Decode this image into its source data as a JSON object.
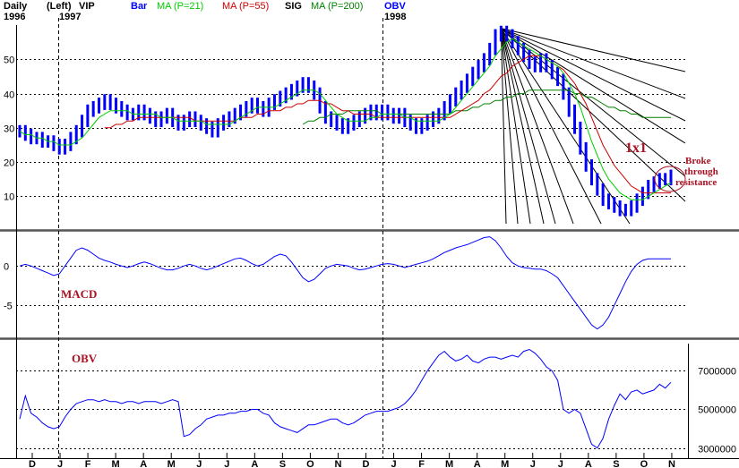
{
  "header": {
    "period": "Daily",
    "year_left": "1996",
    "left_marker": "(Left)",
    "symbol": "VIP",
    "year_left2": "1997",
    "bar": "Bar",
    "ma21": "MA (P=21)",
    "ma55": "MA (P=55)",
    "sig": "SIG",
    "ma200": "MA (P=200)",
    "obv": "OBV",
    "year_right": "1998"
  },
  "colors": {
    "bar": "#0000ff",
    "ma21": "#00cc00",
    "ma55": "#cc0000",
    "ma200": "#008000",
    "annotation": "#aa1122",
    "grid": "#000000",
    "fan": "#000000"
  },
  "annotations": {
    "oneByOne": "1x1",
    "broke1": "Broke",
    "broke2": "through",
    "broke3": "resistance",
    "macd": "MACD",
    "obv": "OBV"
  },
  "chart_data": [
    {
      "type": "line",
      "panel": "price",
      "x_ticks": [
        "D",
        "J",
        "F",
        "M",
        "A",
        "M",
        "J",
        "J",
        "A",
        "S",
        "O",
        "N",
        "D",
        "J",
        "F",
        "M",
        "A",
        "M",
        "J",
        "J",
        "A",
        "S",
        "O",
        "N"
      ],
      "y_ticks": [
        "50",
        "40",
        "30",
        "20",
        "10"
      ],
      "ylim": [
        2,
        60
      ],
      "series": [
        {
          "name": "Bar",
          "values": [
            29,
            28,
            27,
            27,
            26,
            26,
            25,
            24,
            25,
            27,
            29,
            32,
            35,
            36,
            37,
            38,
            37,
            36,
            35,
            34,
            34,
            35,
            34,
            33,
            32,
            33,
            34,
            32,
            31,
            32,
            33,
            32,
            31,
            30,
            29,
            31,
            32,
            33,
            34,
            35,
            36,
            37,
            36,
            35,
            37,
            38,
            39,
            40,
            41,
            42,
            43,
            42,
            40,
            36,
            33,
            32,
            31,
            30,
            31,
            32,
            33,
            34,
            35,
            34,
            35,
            34,
            33,
            34,
            32,
            31,
            30,
            31,
            32,
            33,
            34,
            36,
            38,
            40,
            42,
            44,
            46,
            48,
            50,
            53,
            57,
            58,
            57,
            55,
            53,
            51,
            49,
            48,
            50,
            48,
            46,
            44,
            40,
            35,
            30,
            24,
            19,
            15,
            12,
            9,
            8,
            7,
            6,
            6,
            7,
            9,
            11,
            13,
            14,
            15,
            15,
            16
          ]
        },
        {
          "name": "MA (P=21)",
          "values": [
            29,
            28,
            28,
            27,
            27,
            26,
            26,
            25,
            25,
            25,
            26,
            27,
            29,
            31,
            33,
            34,
            35,
            35,
            35,
            35,
            34,
            34,
            34,
            34,
            34,
            33,
            33,
            33,
            32,
            32,
            32,
            32,
            32,
            31,
            31,
            31,
            31,
            31,
            32,
            33,
            34,
            35,
            36,
            36,
            36,
            36,
            37,
            38,
            39,
            40,
            41,
            41,
            41,
            40,
            38,
            36,
            34,
            33,
            32,
            32,
            32,
            32,
            33,
            33,
            34,
            34,
            34,
            34,
            33,
            33,
            32,
            32,
            32,
            32,
            32,
            33,
            34,
            36,
            38,
            40,
            42,
            44,
            46,
            48,
            51,
            53,
            55,
            56,
            55,
            54,
            53,
            52,
            51,
            50,
            49,
            48,
            46,
            43,
            40,
            36,
            31,
            26,
            22,
            18,
            15,
            13,
            11,
            10,
            9,
            9,
            9,
            10,
            11,
            12,
            13,
            14
          ]
        },
        {
          "name": "MA (P=55)",
          "values": [
            null,
            null,
            null,
            null,
            null,
            null,
            null,
            null,
            null,
            null,
            null,
            null,
            null,
            null,
            null,
            30,
            30,
            31,
            31,
            32,
            32,
            33,
            33,
            33,
            33,
            33,
            33,
            33,
            33,
            33,
            33,
            32,
            32,
            32,
            32,
            32,
            32,
            32,
            32,
            33,
            33,
            33,
            34,
            34,
            35,
            35,
            35,
            36,
            36,
            37,
            37,
            38,
            38,
            38,
            37,
            37,
            36,
            35,
            35,
            34,
            34,
            34,
            34,
            33,
            33,
            33,
            33,
            33,
            33,
            33,
            33,
            33,
            33,
            33,
            33,
            33,
            33,
            34,
            35,
            36,
            37,
            38,
            40,
            41,
            43,
            45,
            46,
            48,
            49,
            50,
            51,
            51,
            51,
            50,
            49,
            48,
            47,
            45,
            43,
            40,
            37,
            33,
            29,
            25,
            22,
            19,
            17,
            15,
            13,
            12,
            11,
            11,
            11,
            11,
            11,
            11
          ]
        },
        {
          "name": "MA (P=200)",
          "values": [
            null,
            null,
            null,
            null,
            null,
            null,
            null,
            null,
            null,
            null,
            null,
            null,
            null,
            null,
            null,
            null,
            null,
            null,
            null,
            null,
            null,
            null,
            null,
            null,
            null,
            null,
            null,
            null,
            null,
            null,
            null,
            null,
            null,
            null,
            null,
            null,
            null,
            null,
            null,
            null,
            null,
            null,
            null,
            null,
            null,
            null,
            null,
            null,
            null,
            null,
            31,
            32,
            32,
            33,
            33,
            34,
            34,
            34,
            35,
            35,
            35,
            35,
            35,
            35,
            34,
            34,
            34,
            34,
            34,
            34,
            34,
            34,
            34,
            34,
            34,
            34,
            34,
            35,
            35,
            35,
            36,
            36,
            37,
            37,
            38,
            38,
            39,
            39,
            40,
            40,
            41,
            41,
            41,
            41,
            41,
            41,
            41,
            41,
            40,
            40,
            39,
            39,
            38,
            37,
            36,
            36,
            35,
            35,
            34,
            34,
            33,
            33,
            33,
            33,
            33,
            33
          ]
        }
      ]
    },
    {
      "type": "line",
      "panel": "macd",
      "y_ticks": [
        "0",
        "-5"
      ],
      "ylim": [
        -8.5,
        4
      ],
      "series": [
        {
          "name": "MACD",
          "values": [
            0,
            0.2,
            0,
            -0.3,
            -0.6,
            -0.9,
            -1.2,
            -1,
            0,
            1,
            2,
            2.3,
            2,
            1.5,
            1,
            0.7,
            0.5,
            0.2,
            0,
            -0.2,
            0,
            0.3,
            0.5,
            0.3,
            0,
            -0.3,
            -0.5,
            -0.5,
            -0.3,
            0,
            0.2,
            0,
            -0.3,
            -0.5,
            -0.3,
            0,
            0.3,
            0.6,
            0.9,
            1,
            0.7,
            0.3,
            0,
            0.2,
            0.7,
            1.2,
            1.5,
            1.3,
            0.5,
            -0.5,
            -1.5,
            -2,
            -1.7,
            -1,
            -0.3,
            0,
            0.2,
            0.1,
            0,
            -0.3,
            -0.5,
            -0.4,
            -0.2,
            0,
            0.2,
            0.3,
            0.2,
            0,
            -0.2,
            0,
            0.2,
            0.4,
            0.6,
            0.9,
            1.3,
            1.7,
            2,
            2.3,
            2.5,
            2.7,
            3,
            3.3,
            3.6,
            3.7,
            3.2,
            2.3,
            1.2,
            0.4,
            0,
            -0.2,
            -0.3,
            -0.4,
            -0.4,
            -0.6,
            -1,
            -1.5,
            -2.5,
            -3.5,
            -4.5,
            -5.5,
            -6.5,
            -7.5,
            -8,
            -7.5,
            -6.5,
            -5,
            -3.5,
            -2,
            -0.7,
            0.2,
            0.7,
            0.9,
            0.9,
            0.9,
            0.9,
            0.9
          ]
        }
      ]
    },
    {
      "type": "line",
      "panel": "obv",
      "y_ticks": [
        "7000000",
        "5000000",
        "3000000"
      ],
      "ylim": [
        2800000,
        8400000
      ],
      "series": [
        {
          "name": "OBV",
          "values": [
            4500000,
            5700000,
            4800000,
            4600000,
            4300000,
            4100000,
            4000000,
            4100000,
            4600000,
            5000000,
            5300000,
            5400000,
            5500000,
            5500000,
            5400000,
            5500000,
            5400000,
            5400000,
            5300000,
            5400000,
            5400000,
            5300000,
            5400000,
            5400000,
            5400000,
            5300000,
            5400000,
            5500000,
            5400000,
            3600000,
            3700000,
            4000000,
            4200000,
            4500000,
            4600000,
            4700000,
            4700000,
            4800000,
            4800000,
            4900000,
            4900000,
            5000000,
            5000000,
            4800000,
            4700000,
            4300000,
            4100000,
            4000000,
            3900000,
            3800000,
            4000000,
            4200000,
            4200000,
            4300000,
            4400000,
            4500000,
            4500000,
            4300000,
            4200000,
            4300000,
            4500000,
            4700000,
            4800000,
            4900000,
            4900000,
            4900000,
            5000000,
            5100000,
            5300000,
            5600000,
            6000000,
            6500000,
            7000000,
            7400000,
            7800000,
            8000000,
            7700000,
            7500000,
            7600000,
            7800000,
            7500000,
            7400000,
            7600000,
            7700000,
            7700000,
            7600000,
            7700000,
            7800000,
            7700000,
            8000000,
            8100000,
            7900000,
            7600000,
            7200000,
            7000000,
            6500000,
            5000000,
            4800000,
            5000000,
            4800000,
            4000000,
            3200000,
            3000000,
            3500000,
            4500000,
            5200000,
            5800000,
            5500000,
            5900000,
            6000000,
            5800000,
            5900000,
            6000000,
            6300000,
            6100000,
            6400000
          ]
        }
      ]
    }
  ]
}
